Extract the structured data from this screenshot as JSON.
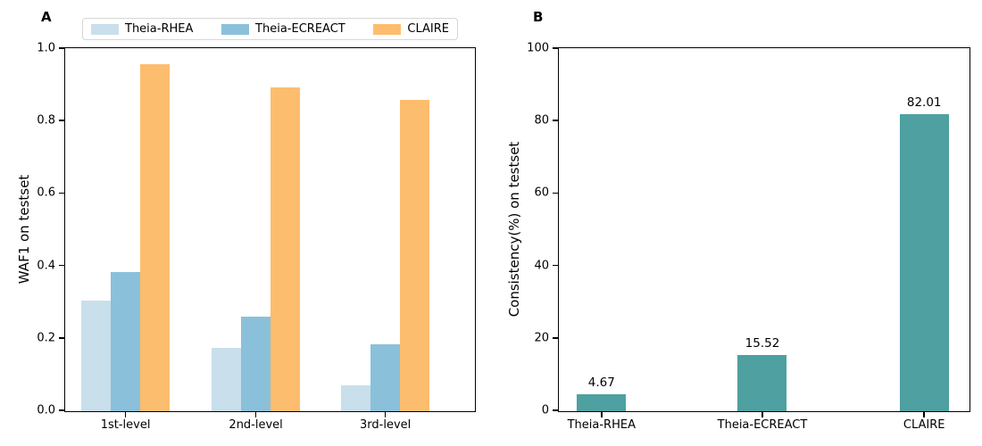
{
  "figure": {
    "panel_a_label": "A",
    "panel_b_label": "B"
  },
  "chart_data": [
    {
      "type": "bar",
      "panel": "A",
      "title": "",
      "categories": [
        "1st-level",
        "2nd-level",
        "3rd-level"
      ],
      "series": [
        {
          "name": "Theia-RHEA",
          "color": "#c9dfeb",
          "values": [
            0.305,
            0.175,
            0.072
          ]
        },
        {
          "name": "Theia-ECREACT",
          "color": "#8bc0da",
          "values": [
            0.385,
            0.26,
            0.185
          ]
        },
        {
          "name": "CLAIRE",
          "color": "#fdbd6e",
          "values": [
            0.958,
            0.895,
            0.86
          ]
        }
      ],
      "xlabel": "",
      "ylabel": "WAF1 on testset",
      "ylim": [
        0,
        1
      ],
      "yticks": [
        0,
        0.2,
        0.4,
        0.6,
        0.8,
        1.0
      ],
      "ytick_labels": [
        "0.0",
        "0.2",
        "0.4",
        "0.6",
        "0.8",
        "1.0"
      ],
      "grid": false,
      "legend_position": "top"
    },
    {
      "type": "bar",
      "panel": "B",
      "title": "",
      "categories": [
        "Theia-RHEA",
        "Theia-ECREACT",
        "CLAIRE"
      ],
      "values": [
        4.67,
        15.52,
        82.01
      ],
      "value_labels": [
        "4.67",
        "15.52",
        "82.01"
      ],
      "bar_color": "#4fa0a0",
      "xlabel": "",
      "ylabel": "Consistency(%) on testset",
      "ylim": [
        0,
        100
      ],
      "yticks": [
        0,
        20,
        40,
        60,
        80,
        100
      ],
      "ytick_labels": [
        "0",
        "20",
        "40",
        "60",
        "80",
        "100"
      ],
      "grid": false,
      "legend_position": "none"
    }
  ]
}
